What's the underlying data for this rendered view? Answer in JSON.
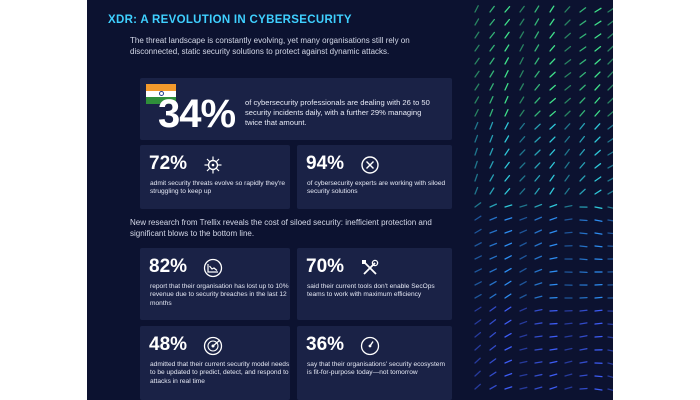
{
  "header": {
    "title": "XDR: A REVOLUTION IN CYBERSECURITY"
  },
  "intro": "The threat landscape is constantly evolving, yet many organisations still rely on disconnected, static security solutions to protect against dynamic attacks.",
  "highlight": {
    "percent": "34%",
    "text": "of cybersecurity professionals are dealing with 26 to 50 security incidents daily, with a further 29% managing twice that amount.",
    "flag_icon": "india-flag-icon"
  },
  "stats_top": [
    {
      "percent": "72%",
      "text": "admit security threats evolve so rapidly they're struggling to keep up",
      "icon": "virus-icon"
    },
    {
      "percent": "94%",
      "text": "of cybersecurity experts are working with siloed security solutions",
      "icon": "close-circle-icon"
    }
  ],
  "mid_text": "New research from Trellix reveals the cost of siloed security: inefficient protection and significant blows to the bottom line.",
  "stats_bottom": [
    {
      "percent": "82%",
      "text": "report that their organisation has lost up to 10% revenue due to security breaches in the last 12 months",
      "icon": "declining-chart-icon"
    },
    {
      "percent": "70%",
      "text": "said their current tools don't enable SecOps teams to work with maximum efficiency",
      "icon": "tools-icon"
    },
    {
      "percent": "48%",
      "text": "admitted that their current security model needs to be updated to predict, detect, and respond to attacks in real time",
      "icon": "radar-icon"
    },
    {
      "percent": "36%",
      "text": "say that their organisations' security ecosystem is fit-for-purpose today—not tomorrow",
      "icon": "gauge-icon"
    }
  ],
  "colors": {
    "background": "#0c1230",
    "card": "#1a2246",
    "accent": "#3fd0ff"
  }
}
